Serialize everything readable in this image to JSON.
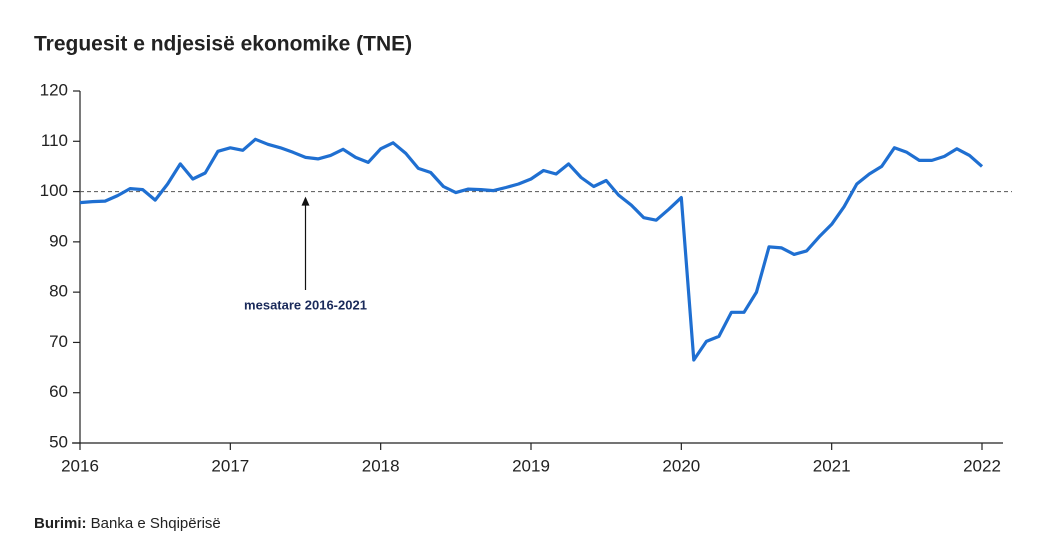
{
  "chart_data": {
    "type": "line",
    "title": "Treguesit e ndjesisë ekonomike (TNE)",
    "x": [
      2016,
      2016.083,
      2016.167,
      2016.25,
      2016.333,
      2016.417,
      2016.5,
      2016.583,
      2016.667,
      2016.75,
      2016.833,
      2016.917,
      2017,
      2017.083,
      2017.167,
      2017.25,
      2017.333,
      2017.417,
      2017.5,
      2017.583,
      2017.667,
      2017.75,
      2017.833,
      2017.917,
      2018,
      2018.083,
      2018.167,
      2018.25,
      2018.333,
      2018.417,
      2018.5,
      2018.583,
      2018.667,
      2018.75,
      2018.833,
      2018.917,
      2019,
      2019.083,
      2019.167,
      2019.25,
      2019.333,
      2019.417,
      2019.5,
      2019.583,
      2019.667,
      2019.75,
      2019.833,
      2019.917,
      2020,
      2020.083,
      2020.167,
      2020.25,
      2020.333,
      2020.417,
      2020.5,
      2020.583,
      2020.667,
      2020.75,
      2020.833,
      2020.917,
      2021,
      2021.083,
      2021.167,
      2021.25,
      2021.333,
      2021.417,
      2021.5,
      2021.583,
      2021.667,
      2021.75,
      2021.833,
      2021.917,
      2022
    ],
    "series": [
      {
        "color": "#1f6fd1",
        "values": [
          97.8,
          98,
          98.1,
          99.2,
          100.6,
          100.4,
          98.3,
          101.5,
          105.5,
          102.5,
          103.7,
          108,
          108.7,
          108.2,
          110.4,
          109.4,
          108.7,
          107.8,
          106.8,
          106.5,
          107.2,
          108.4,
          106.8,
          105.8,
          108.5,
          109.7,
          107.6,
          104.6,
          103.8,
          101,
          99.8,
          100.5,
          100.4,
          100.2,
          100.8,
          101.5,
          102.5,
          104.2,
          103.5,
          105.5,
          102.8,
          101,
          102.2,
          99.3,
          97.3,
          94.8,
          94.3,
          96.5,
          98.8,
          66.5,
          70.2,
          71.2,
          76,
          76,
          80,
          89,
          88.8,
          87.5,
          88.2,
          91,
          93.5,
          97,
          101.5,
          103.5,
          105,
          108.7,
          107.8,
          106.2,
          106.2,
          107,
          108.5,
          107.2,
          105
        ]
      }
    ],
    "xlim": [
      2016,
      2022
    ],
    "xticks": [
      2016,
      2017,
      2018,
      2019,
      2020,
      2021,
      2022
    ],
    "ylim": [
      50,
      120
    ],
    "yticks": [
      50,
      60,
      70,
      80,
      90,
      100,
      110,
      120
    ],
    "reference_line": 100,
    "annotation": {
      "text": "mesatare 2016-2021",
      "x": 2017.5
    },
    "source_label": "Burimi:",
    "source": "Banka e Shqipërisë"
  }
}
